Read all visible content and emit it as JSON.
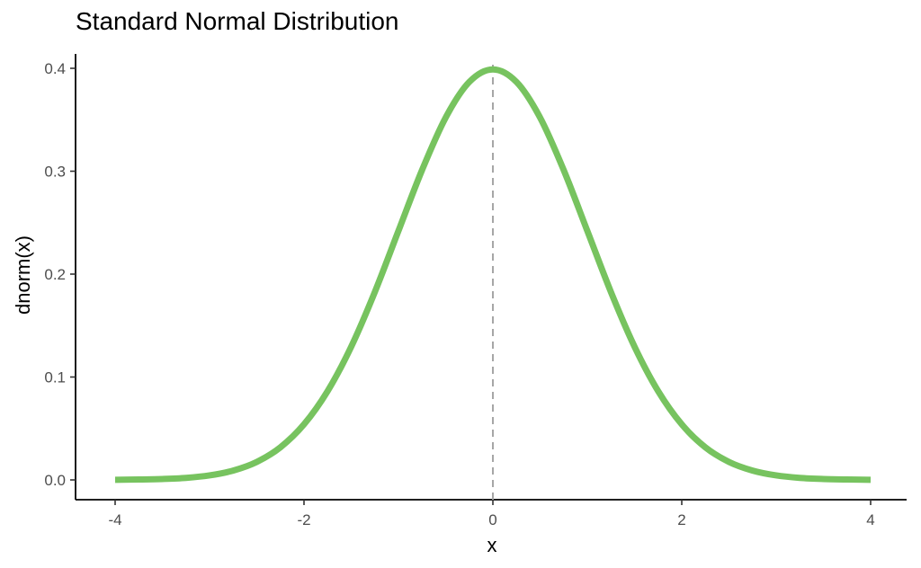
{
  "chart_data": {
    "type": "line",
    "title": "Standard Normal Distribution",
    "xlabel": "x",
    "ylabel": "dnorm(x)",
    "xlim": [
      -4,
      4
    ],
    "ylim": [
      0,
      0.4
    ],
    "xticks": [
      -4,
      -2,
      0,
      2,
      4
    ],
    "yticks": [
      0.0,
      0.1,
      0.2,
      0.3,
      0.4
    ],
    "ytick_labels": [
      "0.0",
      "0.1",
      "0.2",
      "0.3",
      "0.4"
    ],
    "grid": false,
    "reference_line": {
      "x": 0,
      "style": "dashed",
      "color": "#a6a6a6"
    },
    "series": [
      {
        "color": "#77c35f",
        "x": [
          -4,
          -3.75,
          -3.5,
          -3.25,
          -3,
          -2.75,
          -2.5,
          -2.25,
          -2,
          -1.75,
          -1.5,
          -1.25,
          -1,
          -0.75,
          -0.5,
          -0.25,
          0,
          0.25,
          0.5,
          0.75,
          1,
          1.25,
          1.5,
          1.75,
          2,
          2.25,
          2.5,
          2.75,
          3,
          3.25,
          3.5,
          3.75,
          4
        ],
        "y": [
          0.0001,
          0.0004,
          0.0009,
          0.002,
          0.0044,
          0.0091,
          0.0175,
          0.0317,
          0.054,
          0.0863,
          0.1295,
          0.1826,
          0.242,
          0.3011,
          0.3521,
          0.3867,
          0.3989,
          0.3867,
          0.3521,
          0.3011,
          0.242,
          0.1826,
          0.1295,
          0.0863,
          0.054,
          0.0317,
          0.0175,
          0.0091,
          0.0044,
          0.002,
          0.0009,
          0.0004,
          0.0001
        ]
      }
    ]
  }
}
